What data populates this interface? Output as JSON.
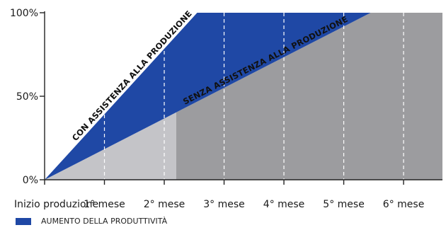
{
  "chart_data": {
    "type": "area",
    "x_categories": [
      "Inizio produzione",
      "1° mese",
      "2° mese",
      "3° mese",
      "4° mese",
      "5° mese",
      "6° mese"
    ],
    "y_ticks": [
      "0%",
      "50%",
      "100%"
    ],
    "ylim": [
      0,
      100
    ],
    "xlim": [
      0,
      6.65
    ],
    "series": [
      {
        "name": "CON ASSISTENZA ALLA PRODUZIONE",
        "x": [
          0,
          2.55
        ],
        "y": [
          0,
          100
        ]
      },
      {
        "name": "SENZA ASSISTENZA ALLA PRODUZIONE",
        "x": [
          0,
          5.45
        ],
        "y": [
          0,
          100
        ]
      }
    ],
    "shaded_region_start": 2.2,
    "grid": "vertical-dashed",
    "legend": {
      "position": "bottom-left",
      "label": "AUMENTO DELLA PRODUTTIVITÀ"
    },
    "colors": {
      "with_assistance": "#1f48a5",
      "without_assistance_light": "#c4c4c8",
      "without_assistance_dark": "#9c9c9f",
      "axis": "#222222",
      "grid": "#ffffff"
    }
  }
}
